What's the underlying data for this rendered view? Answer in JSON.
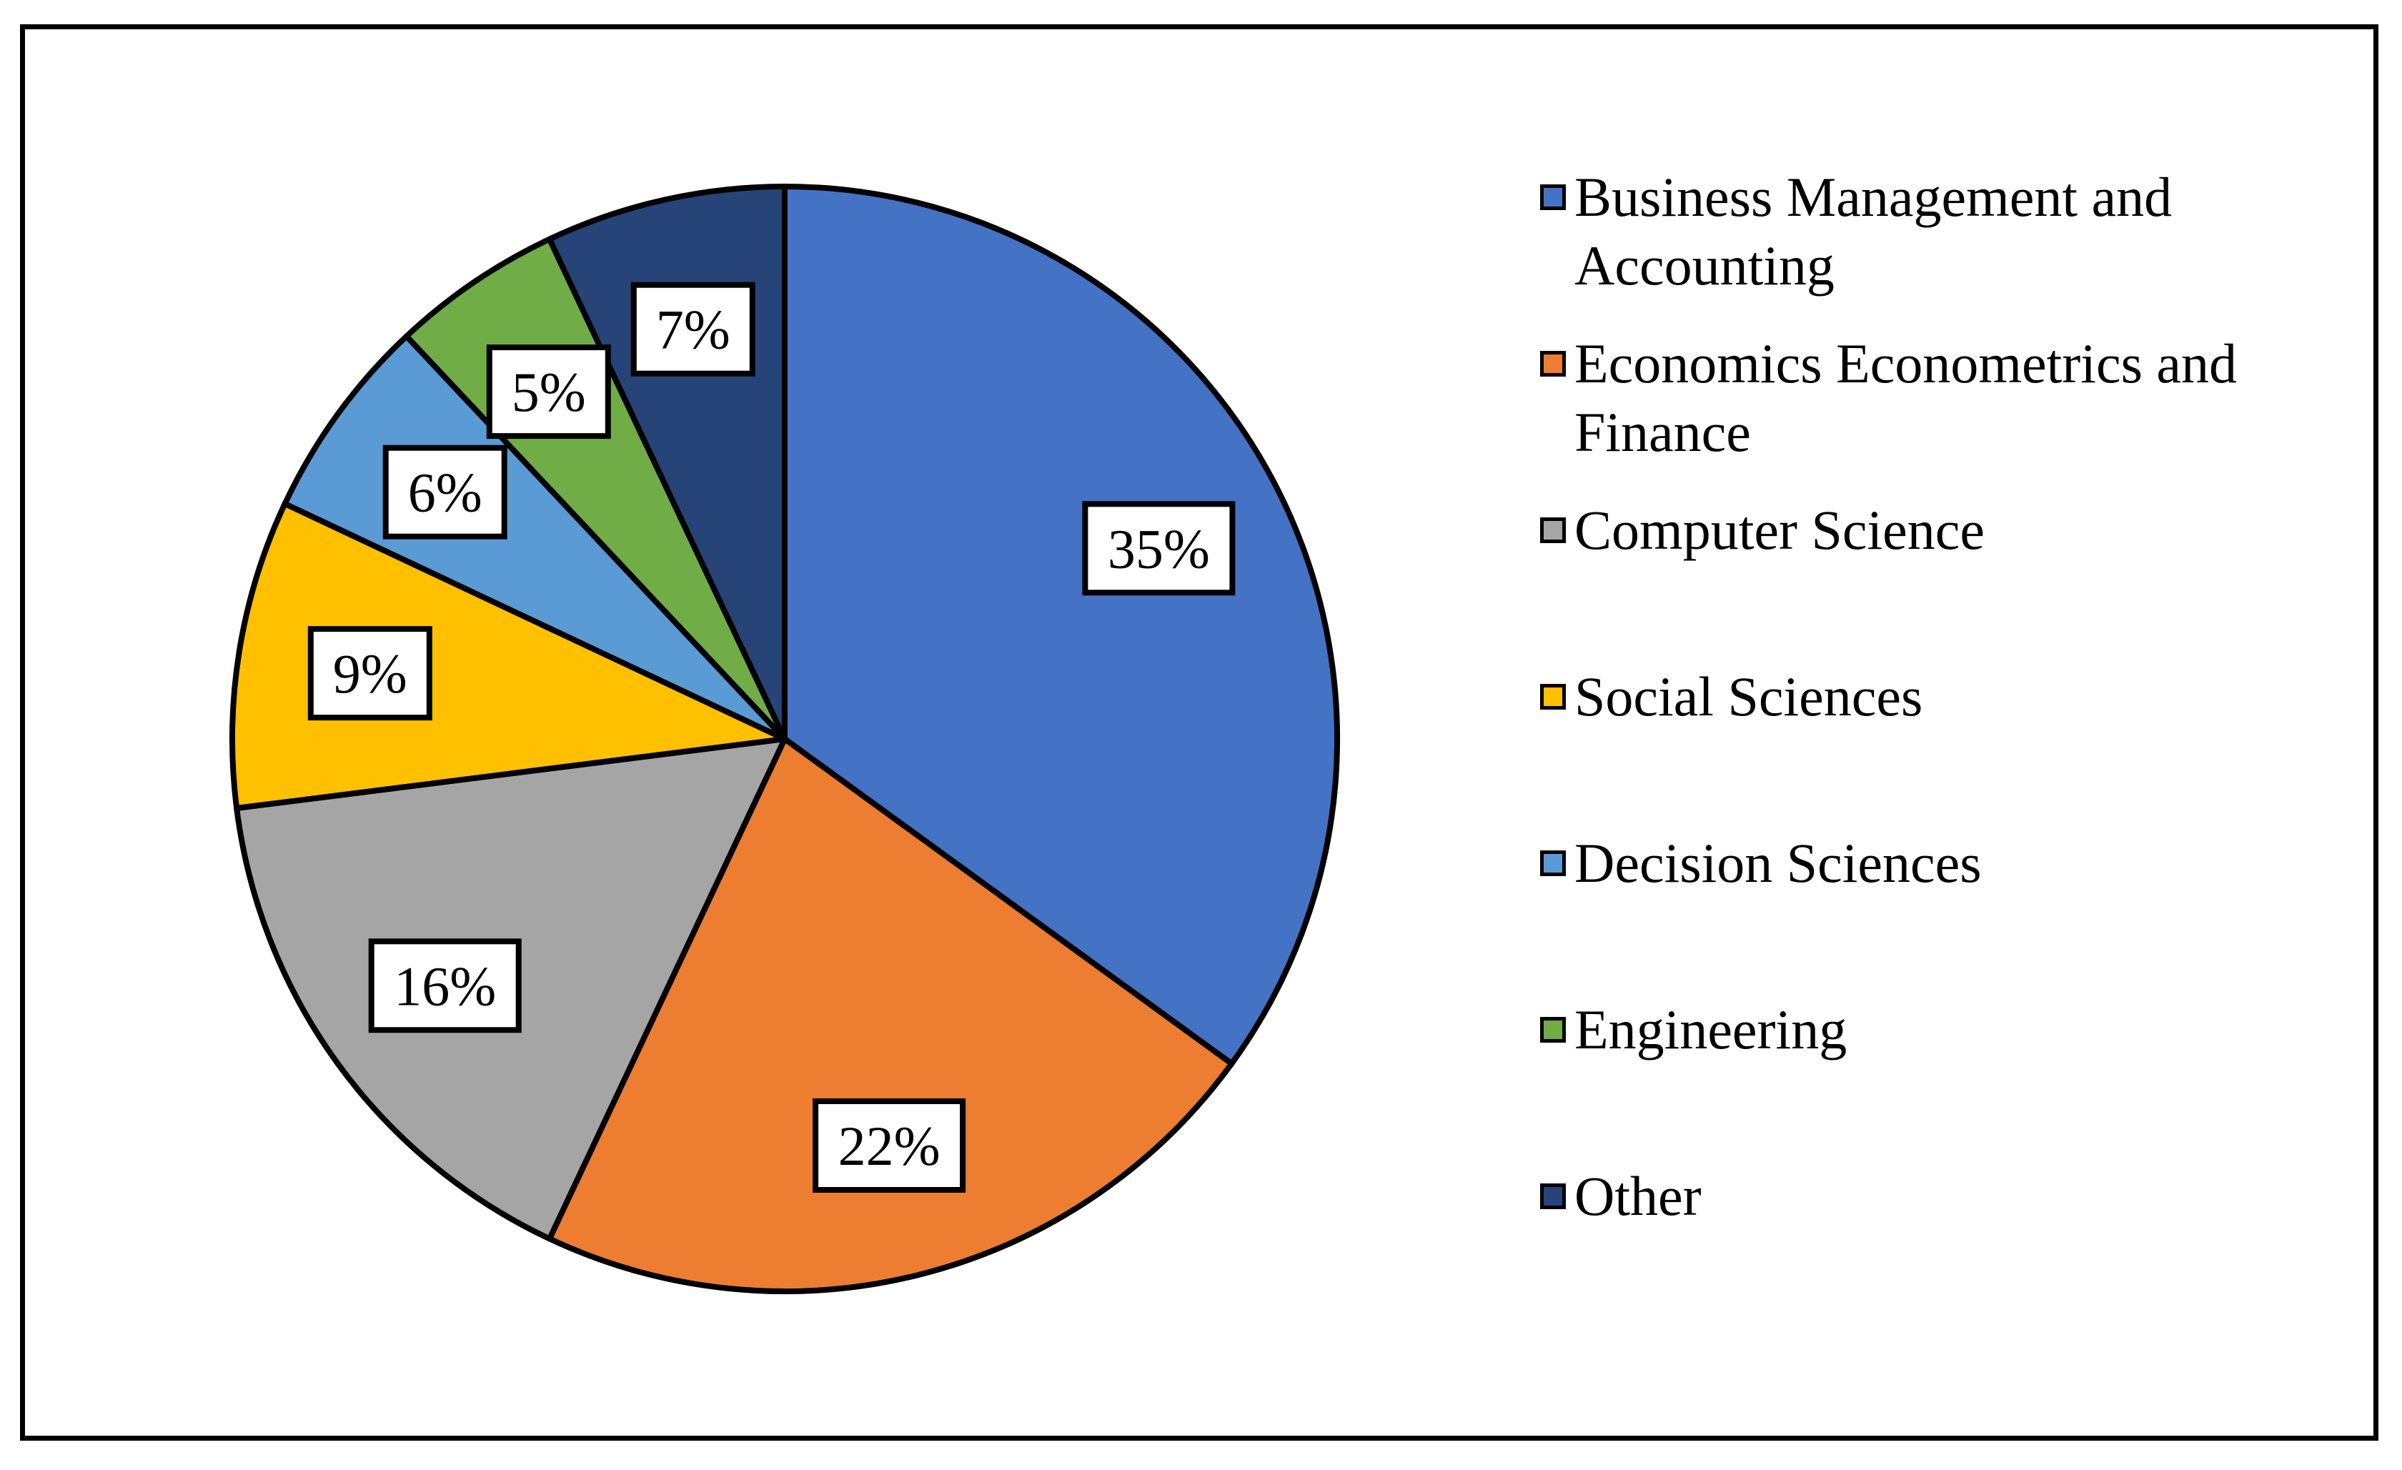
{
  "chart_data": {
    "type": "pie",
    "title": "",
    "slices": [
      {
        "label": "Business Management and Accounting",
        "value": 35,
        "display": "35%",
        "color": "#4472C4"
      },
      {
        "label": "Economics Econometrics and Finance",
        "value": 22,
        "display": "22%",
        "color": "#ED7D31"
      },
      {
        "label": "Computer Science",
        "value": 16,
        "display": "16%",
        "color": "#A5A5A5"
      },
      {
        "label": "Social Sciences",
        "value": 9,
        "display": "9%",
        "color": "#FFC000"
      },
      {
        "label": "Decision Sciences",
        "value": 6,
        "display": "6%",
        "color": "#5B9BD5"
      },
      {
        "label": "Engineering",
        "value": 5,
        "display": "5%",
        "color": "#70AD47"
      },
      {
        "label": "Other",
        "value": 7,
        "display": "7%",
        "color": "#264478"
      }
    ],
    "start_angle_deg": 0,
    "direction": "clockwise",
    "legend_position": "right"
  }
}
